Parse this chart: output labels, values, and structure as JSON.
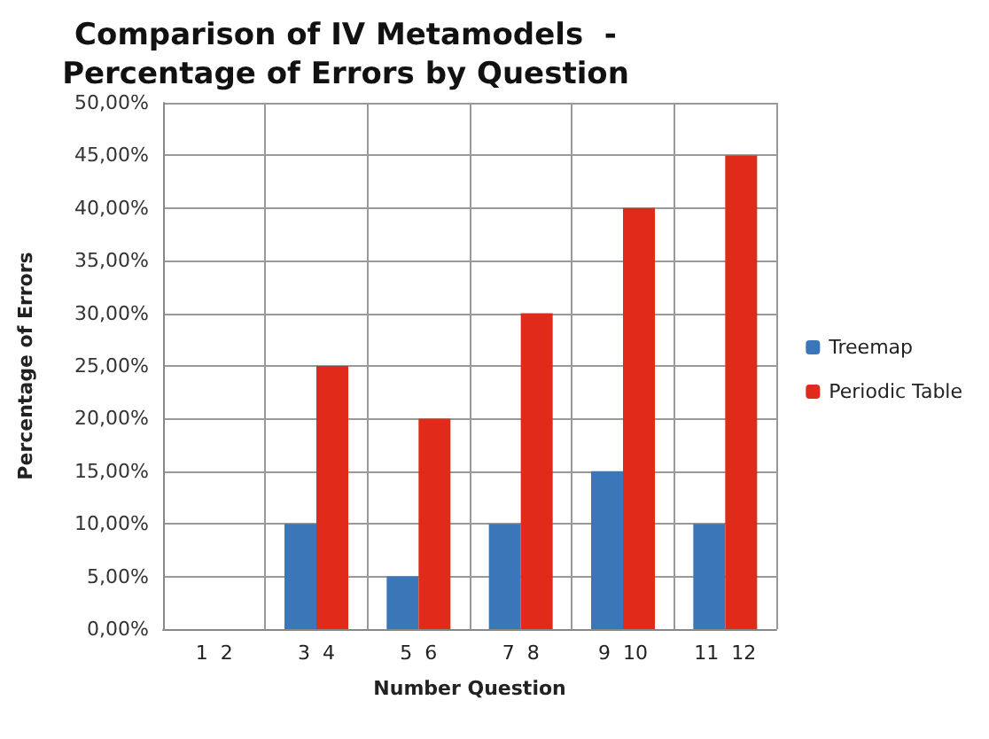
{
  "chart_data": {
    "type": "bar",
    "title": "Comparison of IV Metamodels  -\nPercentage of Errors by Question",
    "xlabel": "Number Question",
    "ylabel": "Percentage of Errors",
    "categories": [
      "1  2",
      "3  4",
      "5  6",
      "7  8",
      "9  10",
      "11  12"
    ],
    "series": [
      {
        "name": "Treemap",
        "color": "#3a76b8",
        "values": [
          0,
          10,
          5,
          10,
          15,
          10
        ]
      },
      {
        "name": "Periodic Table",
        "color": "#e02a1a",
        "values": [
          0,
          25,
          20,
          30,
          40,
          45
        ]
      }
    ],
    "ylim": [
      0,
      50
    ],
    "yticks": [
      {
        "value": 0,
        "label": "0,00%"
      },
      {
        "value": 5,
        "label": "5,00%"
      },
      {
        "value": 10,
        "label": "10,00%"
      },
      {
        "value": 15,
        "label": "15,00%"
      },
      {
        "value": 20,
        "label": "20,00%"
      },
      {
        "value": 25,
        "label": "25,00%"
      },
      {
        "value": 30,
        "label": "30,00%"
      },
      {
        "value": 35,
        "label": "35,00%"
      },
      {
        "value": 40,
        "label": "40,00%"
      },
      {
        "value": 45,
        "label": "45,00%"
      },
      {
        "value": 50,
        "label": "50,00%"
      }
    ],
    "grid": true,
    "legend": "right"
  }
}
